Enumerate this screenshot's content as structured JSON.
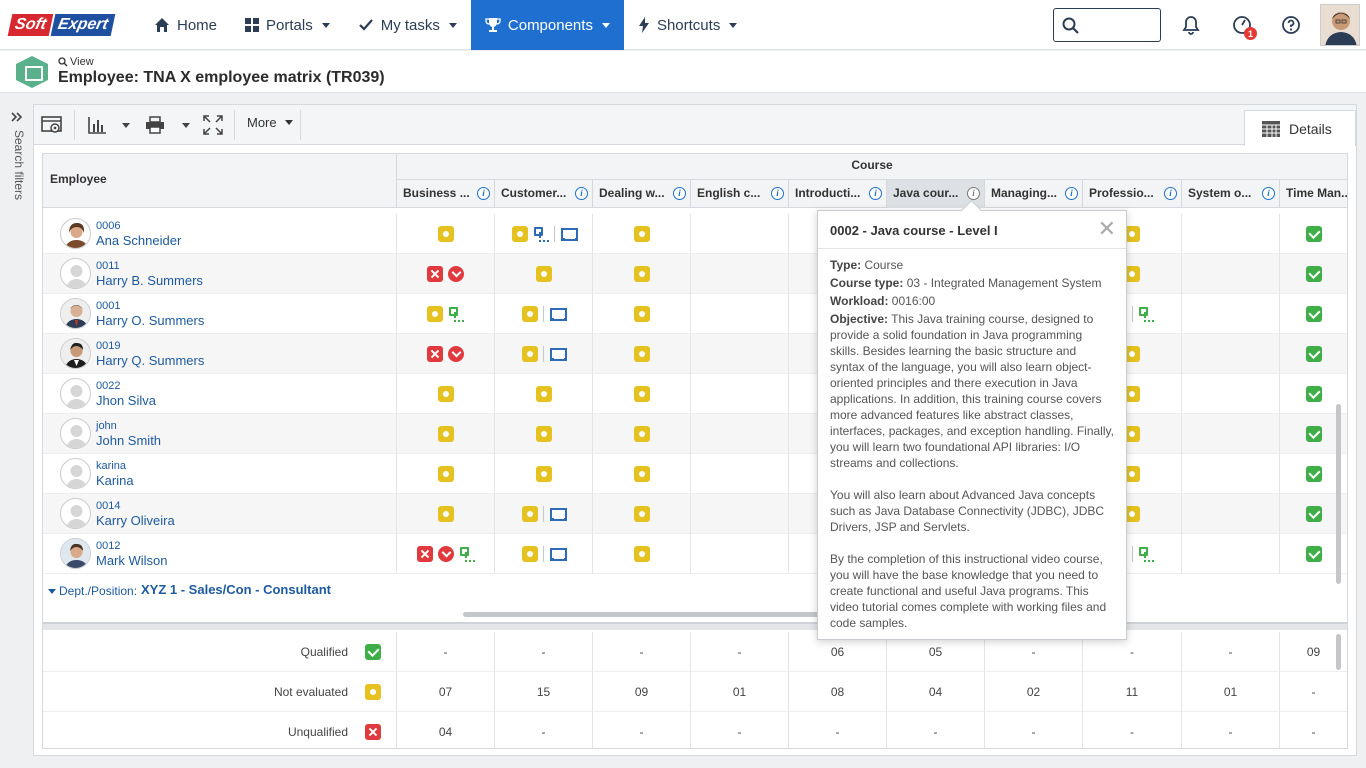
{
  "logo": {
    "part1": "Soft",
    "part2": "Expert"
  },
  "nav": [
    {
      "label": "Home",
      "icon": "home-icon"
    },
    {
      "label": "Portals",
      "icon": "grid-icon"
    },
    {
      "label": "My tasks",
      "icon": "check-icon"
    },
    {
      "label": "Components",
      "icon": "trophy-icon",
      "active": true
    },
    {
      "label": "Shortcuts",
      "icon": "bolt-icon"
    }
  ],
  "notifications_badge": "1",
  "header": {
    "view_link": "View",
    "title": "Employee: TNA X employee matrix (TR039)"
  },
  "search_filters_label": "Search filters",
  "toolbar": {
    "more_label": "More",
    "details_tab": "Details"
  },
  "grid": {
    "employee_header": "Employee",
    "course_header": "Course",
    "columns": [
      "Business ...",
      "Customer...",
      "Dealing w...",
      "English c...",
      "Introducti...",
      "Java cour...",
      "Managing...",
      "Professio...",
      "System o...",
      "Time Man..."
    ],
    "selected_column": "Java cour...",
    "rows": [
      {
        "code": "0006",
        "name": "Ana Schneider"
      },
      {
        "code": "0011",
        "name": "Harry B. Summers"
      },
      {
        "code": "0001",
        "name": "Harry O. Summers"
      },
      {
        "code": "0019",
        "name": "Harry Q. Summers"
      },
      {
        "code": "0022",
        "name": "Jhon Silva"
      },
      {
        "code": "john",
        "name": "John Smith"
      },
      {
        "code": "karina",
        "name": "Karina"
      },
      {
        "code": "0014",
        "name": "Karry Oliveira"
      },
      {
        "code": "0012",
        "name": "Mark Wilson"
      }
    ],
    "dept_label": "Dept./Position:",
    "dept_value": "XYZ 1 - Sales/Con - Consultant"
  },
  "summary": [
    {
      "label": "Qualified",
      "status": "qualified",
      "values": [
        "-",
        "-",
        "-",
        "-",
        "06",
        "05",
        "-",
        "-",
        "-",
        "09"
      ]
    },
    {
      "label": "Not evaluated",
      "status": "not-evaluated",
      "values": [
        "07",
        "15",
        "09",
        "01",
        "08",
        "04",
        "02",
        "11",
        "01",
        "-"
      ]
    },
    {
      "label": "Unqualified",
      "status": "unqualified",
      "values": [
        "04",
        "-",
        "-",
        "-",
        "-",
        "-",
        "-",
        "-",
        "-",
        "-"
      ]
    }
  ],
  "tooltip": {
    "title": "0002 - Java course - Level I",
    "type_label": "Type:",
    "type_value": "Course",
    "course_type_label": "Course type:",
    "course_type_value": "03 - Integrated Management System",
    "workload_label": "Workload:",
    "workload_value": "0016:00",
    "objective_label": "Objective:",
    "objective_p1": "This Java training course, designed to provide a solid foundation in Java programming skills. Besides learning the basic structure and syntax of the language, you will also learn object-oriented principles and there execution in Java applications. In addition, this training course covers more advanced features like abstract classes, interfaces, packages, and exception handling. Finally, you will learn two foundational API libraries: I/O streams and collections.",
    "objective_p2": "You will also learn about Advanced Java concepts such as Java Database Connectivity (JDBC), JDBC Drivers, JSP and Servlets.",
    "objective_p3": "By the completion of this instructional video course, you will have the base knowledge that you need to create functional and useful Java programs. This video tutorial comes complete with working files and code samples."
  },
  "colors": {
    "accent": "#1e6fd0",
    "qualified": "#3fae49",
    "not_evaluated": "#e5c21f",
    "unqualified": "#e03a3e"
  }
}
